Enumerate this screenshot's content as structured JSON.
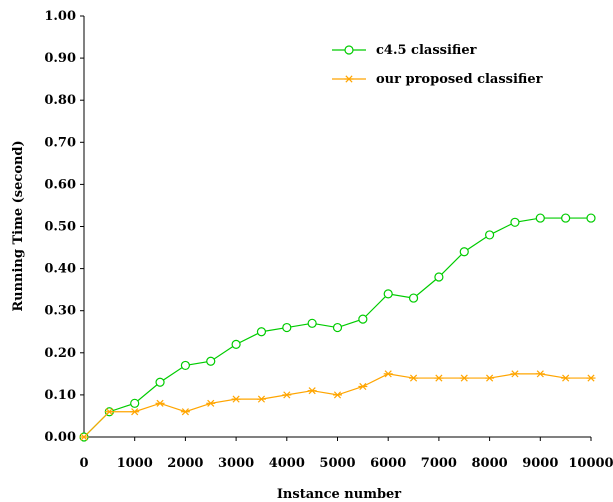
{
  "chart_data": {
    "type": "line",
    "title": "",
    "xlabel": "Instance number",
    "ylabel": "Running Time (second)",
    "xlim": [
      0,
      10000
    ],
    "ylim": [
      0,
      1.0
    ],
    "x_ticks": [
      "0",
      "1000",
      "2000",
      "3000",
      "4000",
      "5000",
      "6000",
      "7000",
      "8000",
      "9000",
      "10000"
    ],
    "y_ticks": [
      "0.00",
      "0.10",
      "0.20",
      "0.30",
      "0.40",
      "0.50",
      "0.60",
      "0.70",
      "0.80",
      "0.90",
      "1.00"
    ],
    "grid": false,
    "legend": "top-right",
    "x": [
      0,
      500,
      1000,
      1500,
      2000,
      2500,
      3000,
      3500,
      4000,
      4500,
      5000,
      5500,
      6000,
      6500,
      7000,
      7500,
      8000,
      8500,
      9000,
      9500,
      10000
    ],
    "series": [
      {
        "name": "c4.5 classifier",
        "color": "#00cc00",
        "marker": "circle",
        "values": [
          0.0,
          0.06,
          0.08,
          0.13,
          0.17,
          0.18,
          0.22,
          0.25,
          0.26,
          0.27,
          0.26,
          0.28,
          0.34,
          0.33,
          0.38,
          0.44,
          0.48,
          0.51,
          0.52,
          0.52,
          0.52
        ]
      },
      {
        "name": "our proposed classifier",
        "color": "#ffa500",
        "marker": "asterisk",
        "values": [
          0.0,
          0.06,
          0.06,
          0.08,
          0.06,
          0.08,
          0.09,
          0.09,
          0.1,
          0.11,
          0.1,
          0.12,
          0.15,
          0.14,
          0.14,
          0.14,
          0.14,
          0.15,
          0.15,
          0.14,
          0.14
        ]
      }
    ]
  }
}
